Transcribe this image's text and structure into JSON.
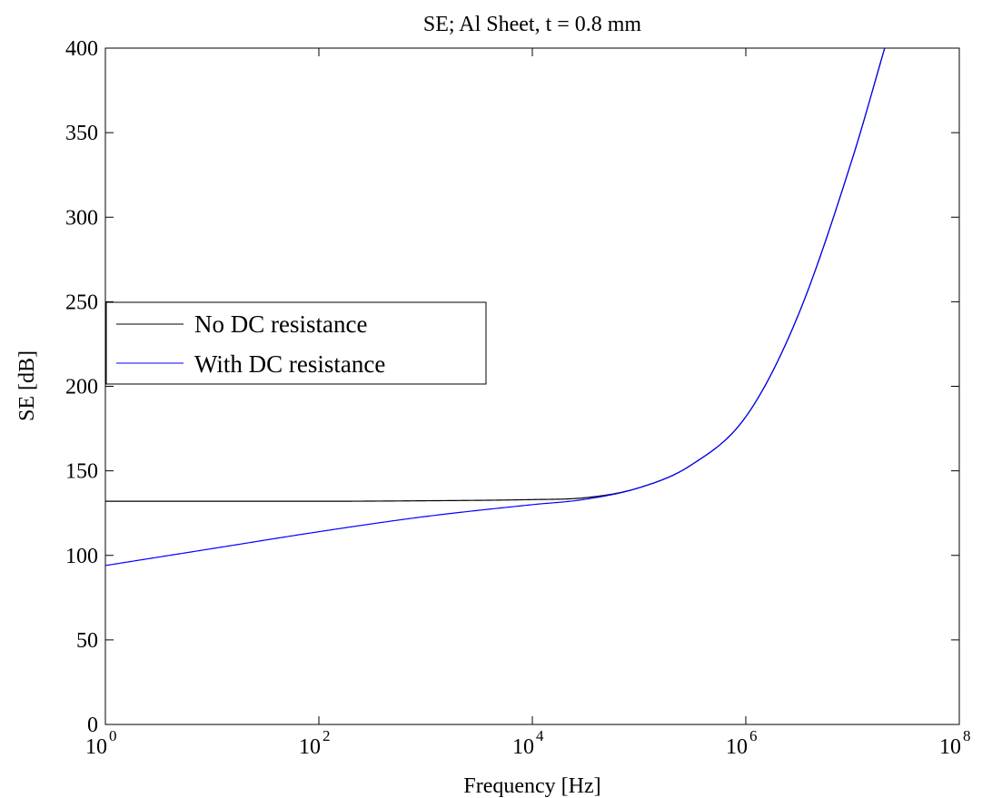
{
  "chart_data": {
    "type": "line",
    "title": "SE; Al Sheet, t = 0.8 mm",
    "xlabel": "Frequency [Hz]",
    "ylabel": "SE [dB]",
    "xscale": "log",
    "xlim": [
      1,
      100000000
    ],
    "ylim": [
      0,
      400
    ],
    "x_ticks": [
      {
        "value": 1,
        "base": "10",
        "exp": "0"
      },
      {
        "value": 100,
        "base": "10",
        "exp": "2"
      },
      {
        "value": 10000,
        "base": "10",
        "exp": "4"
      },
      {
        "value": 1000000,
        "base": "10",
        "exp": "6"
      },
      {
        "value": 100000000,
        "base": "10",
        "exp": "8"
      }
    ],
    "y_ticks": [
      {
        "value": 0,
        "label": "0"
      },
      {
        "value": 50,
        "label": "50"
      },
      {
        "value": 100,
        "label": "100"
      },
      {
        "value": 150,
        "label": "150"
      },
      {
        "value": 200,
        "label": "200"
      },
      {
        "value": 250,
        "label": "250"
      },
      {
        "value": 300,
        "label": "300"
      },
      {
        "value": 350,
        "label": "350"
      },
      {
        "value": 400,
        "label": "400"
      }
    ],
    "grid": false,
    "legend_position": "middle-left",
    "series": [
      {
        "name": "No DC resistance",
        "color": "#000000",
        "x": [
          1,
          10,
          100,
          1000,
          10000,
          30000,
          100000,
          300000,
          1000000,
          3000000,
          10000000,
          20000000
        ],
        "y": [
          132,
          132,
          132,
          132.3,
          133,
          134,
          140,
          153,
          182,
          240,
          335,
          400
        ]
      },
      {
        "name": "With DC resistance",
        "color": "#0000ff",
        "x": [
          1,
          10,
          100,
          1000,
          10000,
          30000,
          100000,
          300000,
          1000000,
          3000000,
          10000000,
          20000000
        ],
        "y": [
          94,
          104,
          114,
          123,
          130,
          133,
          140,
          153,
          182,
          240,
          335,
          400
        ]
      }
    ]
  }
}
